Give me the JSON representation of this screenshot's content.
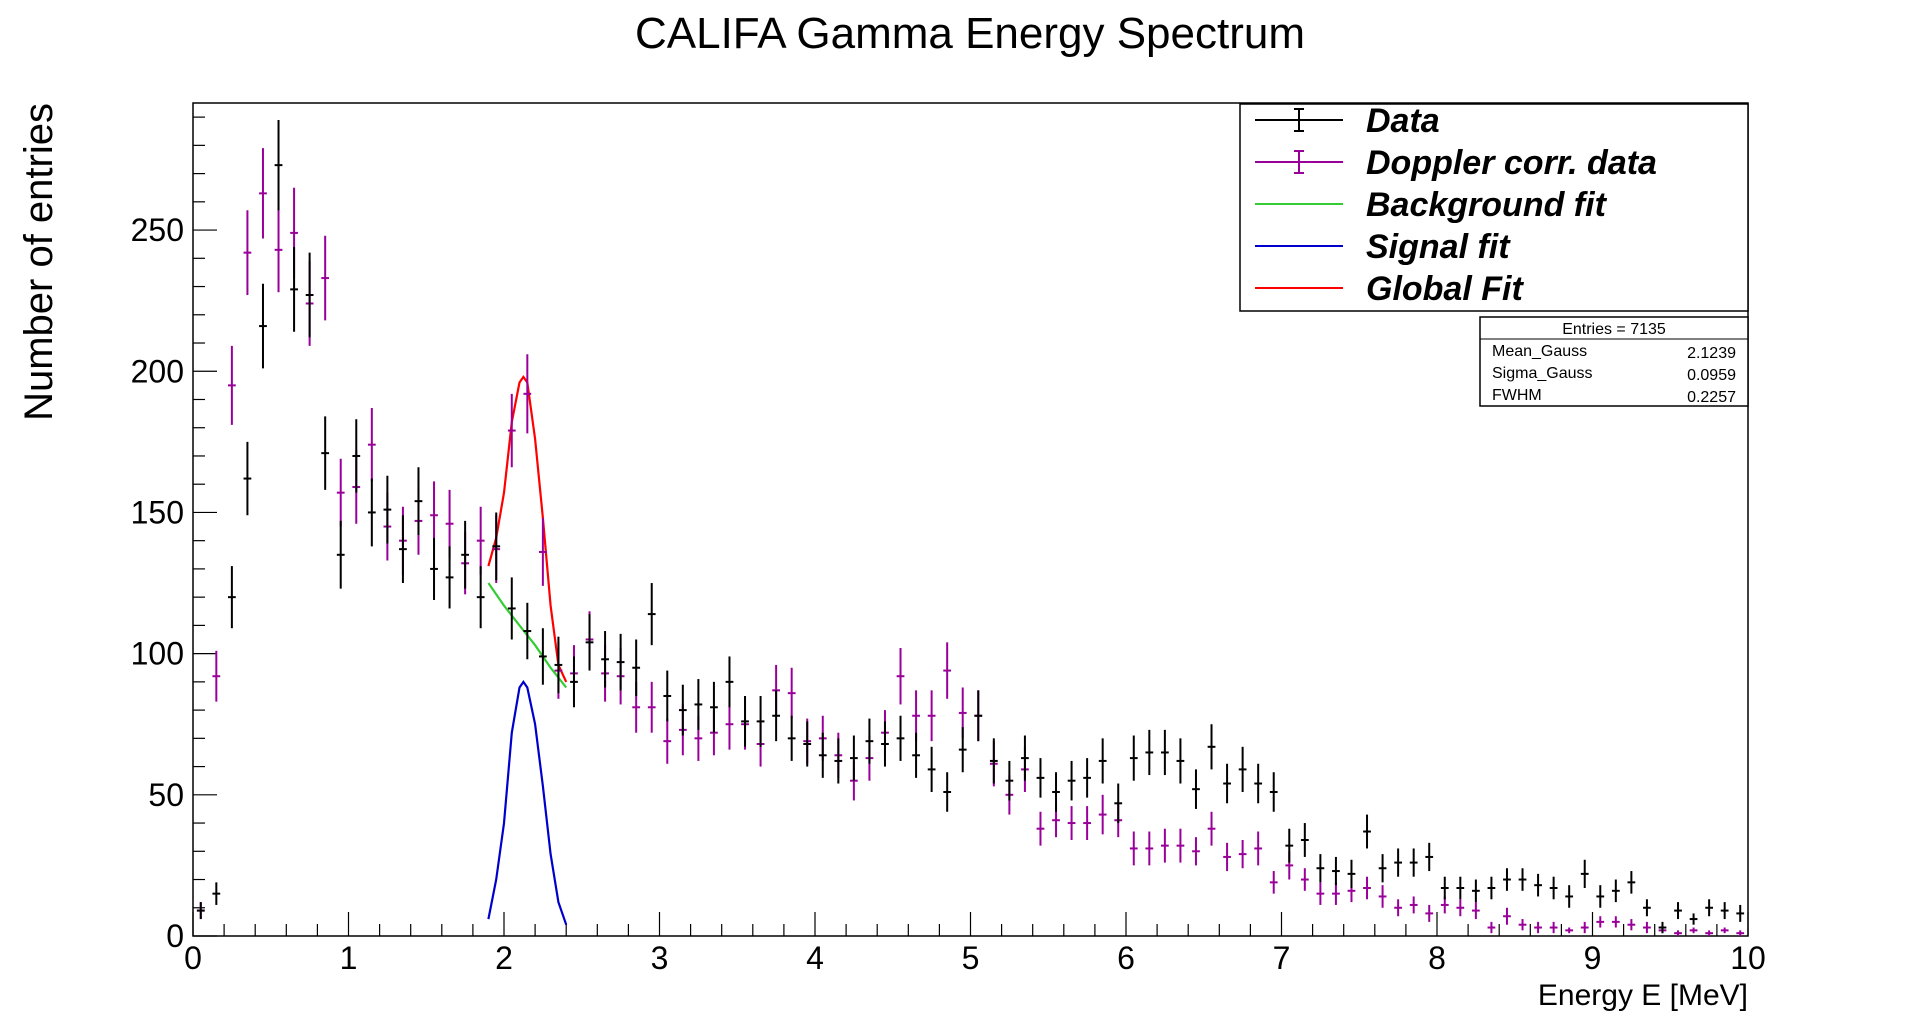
{
  "chart_data": {
    "type": "scatter",
    "title": "CALIFA Gamma Energy Spectrum",
    "xlabel": "Energy E [MeV]",
    "ylabel": "Number of entries",
    "xlim": [
      0,
      10
    ],
    "ylim": [
      0,
      295
    ],
    "x_ticks": [
      "0",
      "1",
      "2",
      "3",
      "4",
      "5",
      "6",
      "7",
      "8",
      "9",
      "10"
    ],
    "y_ticks": [
      "0",
      "50",
      "100",
      "150",
      "200",
      "250"
    ],
    "grid": false,
    "bin_width": 0.1,
    "legend_position": "top-right",
    "series": [
      {
        "name": "Data",
        "color": "#000000",
        "kind": "errorbar",
        "x": [
          0.05,
          0.15,
          0.25,
          0.35,
          0.45,
          0.55,
          0.65,
          0.75,
          0.85,
          0.95,
          1.05,
          1.15,
          1.25,
          1.35,
          1.45,
          1.55,
          1.65,
          1.75,
          1.85,
          1.95,
          2.05,
          2.15,
          2.25,
          2.35,
          2.45,
          2.55,
          2.65,
          2.75,
          2.85,
          2.95,
          3.05,
          3.15,
          3.25,
          3.35,
          3.45,
          3.55,
          3.65,
          3.75,
          3.85,
          3.95,
          4.05,
          4.15,
          4.25,
          4.35,
          4.45,
          4.55,
          4.65,
          4.75,
          4.85,
          4.95,
          5.05,
          5.15,
          5.25,
          5.35,
          5.45,
          5.55,
          5.65,
          5.75,
          5.85,
          5.95,
          6.05,
          6.15,
          6.25,
          6.35,
          6.45,
          6.55,
          6.65,
          6.75,
          6.85,
          6.95,
          7.05,
          7.15,
          7.25,
          7.35,
          7.45,
          7.55,
          7.65,
          7.75,
          7.85,
          7.95,
          8.05,
          8.15,
          8.25,
          8.35,
          8.45,
          8.55,
          8.65,
          8.75,
          8.85,
          8.95,
          9.05,
          9.15,
          9.25,
          9.35,
          9.45,
          9.55,
          9.65,
          9.75,
          9.85,
          9.95
        ],
        "y": [
          9,
          15,
          120,
          162,
          216,
          273,
          229,
          227,
          171,
          135,
          170,
          150,
          151,
          137,
          154,
          130,
          127,
          135,
          120,
          138,
          116,
          108,
          99,
          96,
          90,
          104,
          98,
          97,
          95,
          114,
          85,
          80,
          82,
          81,
          90,
          76,
          76,
          78,
          70,
          68,
          64,
          62,
          63,
          69,
          68,
          70,
          64,
          59,
          51,
          66,
          78,
          62,
          55,
          63,
          56,
          51,
          55,
          56,
          62,
          47,
          63,
          65,
          65,
          62,
          52,
          67,
          54,
          59,
          54,
          51,
          32,
          34,
          24,
          23,
          22,
          37,
          24,
          26,
          26,
          28,
          17,
          17,
          16,
          17,
          20,
          20,
          18,
          17,
          14,
          22,
          14,
          16,
          19,
          10,
          3,
          9,
          6,
          10,
          9,
          8
        ],
        "yerr": [
          3,
          4,
          11,
          13,
          15,
          16,
          15,
          15,
          13,
          12,
          13,
          12,
          12,
          12,
          12,
          11,
          11,
          12,
          11,
          12,
          11,
          10,
          10,
          10,
          9,
          10,
          10,
          10,
          10,
          11,
          9,
          9,
          9,
          9,
          9,
          9,
          9,
          9,
          8,
          8,
          8,
          8,
          8,
          8,
          8,
          8,
          8,
          8,
          7,
          8,
          9,
          8,
          7,
          8,
          7,
          7,
          7,
          7,
          8,
          7,
          8,
          8,
          8,
          8,
          7,
          8,
          7,
          8,
          7,
          7,
          6,
          6,
          5,
          5,
          5,
          6,
          5,
          5,
          5,
          5,
          4,
          4,
          4,
          4,
          4,
          4,
          4,
          4,
          4,
          5,
          4,
          4,
          4,
          3,
          2,
          3,
          2,
          3,
          3,
          3
        ]
      },
      {
        "name": "Doppler corr. data",
        "color": "#990099",
        "kind": "errorbar",
        "x": [
          0.05,
          0.15,
          0.25,
          0.35,
          0.45,
          0.55,
          0.65,
          0.75,
          0.85,
          0.95,
          1.05,
          1.15,
          1.25,
          1.35,
          1.45,
          1.55,
          1.65,
          1.75,
          1.85,
          1.95,
          2.05,
          2.15,
          2.25,
          2.35,
          2.45,
          2.55,
          2.65,
          2.75,
          2.85,
          2.95,
          3.05,
          3.15,
          3.25,
          3.35,
          3.45,
          3.55,
          3.65,
          3.75,
          3.85,
          3.95,
          4.05,
          4.15,
          4.25,
          4.35,
          4.45,
          4.55,
          4.65,
          4.75,
          4.85,
          4.95,
          5.05,
          5.15,
          5.25,
          5.35,
          5.45,
          5.55,
          5.65,
          5.75,
          5.85,
          5.95,
          6.05,
          6.15,
          6.25,
          6.35,
          6.45,
          6.55,
          6.65,
          6.75,
          6.85,
          6.95,
          7.05,
          7.15,
          7.25,
          7.35,
          7.45,
          7.55,
          7.65,
          7.75,
          7.85,
          7.95,
          8.05,
          8.15,
          8.25,
          8.35,
          8.45,
          8.55,
          8.65,
          8.75,
          8.85,
          8.95,
          9.05,
          9.15,
          9.25,
          9.35,
          9.45,
          9.55,
          9.65,
          9.75,
          9.85,
          9.95
        ],
        "y": [
          9,
          92,
          195,
          242,
          263,
          243,
          249,
          224,
          233,
          157,
          159,
          174,
          145,
          140,
          147,
          149,
          146,
          132,
          140,
          137,
          179,
          192,
          136,
          94,
          93,
          105,
          93,
          92,
          81,
          81,
          69,
          73,
          70,
          72,
          75,
          75,
          68,
          87,
          86,
          69,
          70,
          64,
          55,
          63,
          72,
          92,
          78,
          78,
          94,
          79,
          78,
          61,
          50,
          59,
          38,
          41,
          40,
          40,
          43,
          41,
          31,
          31,
          32,
          32,
          30,
          38,
          28,
          29,
          31,
          19,
          25,
          20,
          15,
          15,
          16,
          17,
          14,
          10,
          11,
          8,
          11,
          10,
          9,
          3,
          7,
          4,
          3,
          3,
          2,
          3,
          5,
          5,
          4,
          3,
          2,
          1,
          2,
          1,
          2,
          1
        ],
        "yerr": [
          3,
          9,
          14,
          15,
          16,
          15,
          16,
          15,
          15,
          12,
          13,
          13,
          12,
          12,
          12,
          12,
          12,
          11,
          12,
          12,
          13,
          14,
          12,
          10,
          10,
          10,
          10,
          10,
          9,
          9,
          8,
          9,
          8,
          8,
          9,
          9,
          8,
          9,
          9,
          8,
          8,
          8,
          7,
          8,
          8,
          10,
          9,
          9,
          10,
          9,
          9,
          8,
          7,
          8,
          6,
          6,
          6,
          6,
          7,
          6,
          6,
          6,
          6,
          6,
          5,
          6,
          5,
          5,
          6,
          4,
          5,
          4,
          4,
          4,
          4,
          4,
          4,
          3,
          3,
          3,
          3,
          3,
          3,
          2,
          3,
          2,
          2,
          2,
          1,
          2,
          2,
          2,
          2,
          2,
          1,
          1,
          1,
          1,
          1,
          1
        ]
      },
      {
        "name": "Background fit",
        "color": "#33cc33",
        "kind": "line",
        "x": [
          1.9,
          2.0,
          2.1,
          2.2,
          2.3,
          2.4
        ],
        "y": [
          125,
          117,
          110,
          103,
          95,
          88
        ]
      },
      {
        "name": "Signal fit",
        "color": "#0000cc",
        "kind": "line",
        "x": [
          1.9,
          1.95,
          2.0,
          2.05,
          2.1,
          2.125,
          2.15,
          2.2,
          2.25,
          2.3,
          2.35,
          2.4
        ],
        "y": [
          6,
          20,
          40,
          72,
          88,
          90,
          88,
          75,
          53,
          29,
          12,
          4
        ]
      },
      {
        "name": "Global Fit",
        "color": "#ff0000",
        "kind": "line",
        "x": [
          1.9,
          1.95,
          2.0,
          2.05,
          2.1,
          2.125,
          2.15,
          2.2,
          2.25,
          2.3,
          2.35,
          2.4
        ],
        "y": [
          131,
          141,
          157,
          182,
          196,
          198,
          196,
          176,
          148,
          117,
          96,
          90
        ]
      }
    ],
    "stats_box": {
      "entries_label": "Entries = 7135",
      "rows": [
        {
          "name": "Mean_Gauss",
          "value": "2.1239"
        },
        {
          "name": "Sigma_Gauss",
          "value": "0.0959"
        },
        {
          "name": "FWHM",
          "value": "0.2257"
        }
      ]
    }
  }
}
